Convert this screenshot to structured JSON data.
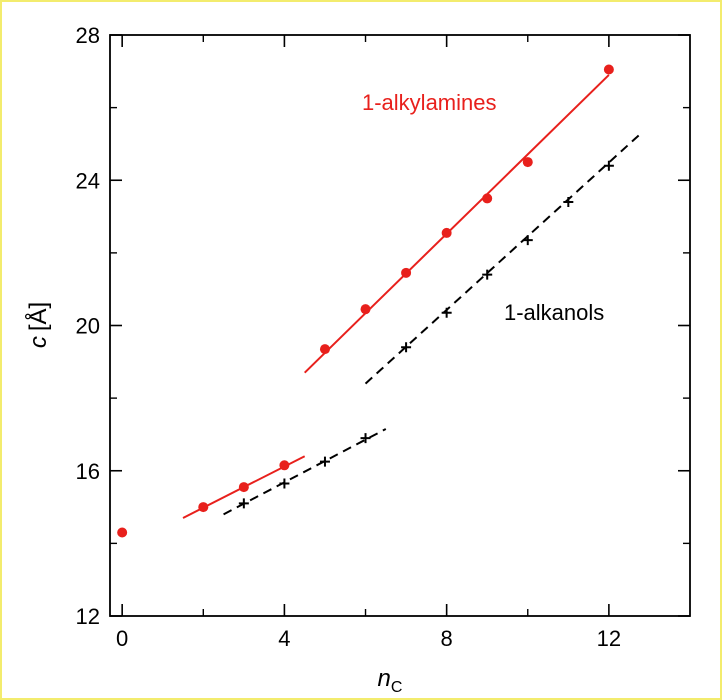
{
  "colors": {
    "page_background": "#fffcc8",
    "page_border": "#f3ec6e",
    "plot_background": "#ffffff",
    "amines": "#e8201c",
    "alkanols": "#000000"
  },
  "chart_data": {
    "type": "scatter",
    "xlabel_main": "n",
    "xlabel_sub": "C",
    "ylabel_main": "c",
    "ylabel_unit": "[Å]",
    "xlim": [
      -0.3,
      14
    ],
    "ylim": [
      12,
      28
    ],
    "xticks": [
      0,
      4,
      8,
      12
    ],
    "yticks": [
      12,
      16,
      20,
      24,
      28
    ],
    "minor_xticks": [
      2,
      6,
      10
    ],
    "minor_yticks": [
      14,
      18,
      22,
      26
    ],
    "grid": false,
    "series": [
      {
        "name": "1-alkylamines",
        "marker": "filled-circle",
        "color": "#e8201c",
        "points": [
          {
            "x": 0,
            "y": 14.3
          },
          {
            "x": 2,
            "y": 15.0
          },
          {
            "x": 3,
            "y": 15.55
          },
          {
            "x": 4,
            "y": 16.15
          },
          {
            "x": 5,
            "y": 19.35
          },
          {
            "x": 6,
            "y": 20.45
          },
          {
            "x": 7,
            "y": 21.45
          },
          {
            "x": 8,
            "y": 22.55
          },
          {
            "x": 9,
            "y": 23.5
          },
          {
            "x": 10,
            "y": 24.5
          },
          {
            "x": 12,
            "y": 27.05
          }
        ],
        "fits": [
          {
            "x": [
              1.5,
              4.5
            ],
            "y": [
              14.7,
              16.4
            ],
            "style": "solid"
          },
          {
            "x": [
              4.5,
              12.0
            ],
            "y": [
              18.7,
              26.9
            ],
            "style": "solid"
          }
        ]
      },
      {
        "name": "1-alkanols",
        "marker": "plus",
        "color": "#000000",
        "points": [
          {
            "x": 3,
            "y": 15.1
          },
          {
            "x": 4,
            "y": 15.65
          },
          {
            "x": 5,
            "y": 16.25
          },
          {
            "x": 6,
            "y": 16.9
          },
          {
            "x": 7,
            "y": 19.4
          },
          {
            "x": 8,
            "y": 20.35
          },
          {
            "x": 9,
            "y": 21.4
          },
          {
            "x": 10,
            "y": 22.35
          },
          {
            "x": 11,
            "y": 23.4
          },
          {
            "x": 12,
            "y": 24.4
          }
        ],
        "fits": [
          {
            "x": [
              2.5,
              6.5
            ],
            "y": [
              14.8,
              17.15
            ],
            "style": "dashed"
          },
          {
            "x": [
              6.0,
              12.8
            ],
            "y": [
              18.4,
              25.3
            ],
            "style": "dashed"
          }
        ]
      }
    ]
  }
}
